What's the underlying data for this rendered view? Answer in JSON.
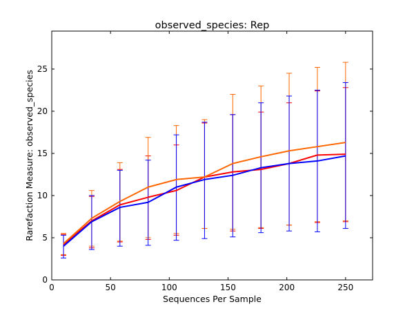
{
  "chart_data": {
    "type": "line",
    "title": "observed_species: Rep",
    "xlabel": "Sequences Per Sample",
    "ylabel": "Rarefaction Measure: observed_species",
    "xlim": [
      0,
      273
    ],
    "ylim": [
      0,
      29.5
    ],
    "xticks": [
      0,
      50,
      100,
      150,
      200,
      250
    ],
    "yticks": [
      0,
      5,
      10,
      15,
      20,
      25
    ],
    "grid": false,
    "legend": "none",
    "x": [
      10,
      34,
      58,
      82,
      106,
      130,
      154,
      178,
      202,
      226,
      250
    ],
    "series": [
      {
        "color": "#ff0000",
        "values": [
          4.2,
          7.0,
          8.9,
          9.8,
          10.6,
          12.2,
          12.8,
          13.1,
          13.8,
          14.8,
          14.9
        ],
        "err_low": [
          2.9,
          3.8,
          4.5,
          4.8,
          5.3,
          6.1,
          5.8,
          6.1,
          6.5,
          6.8,
          6.9
        ],
        "err_high": [
          5.4,
          9.9,
          13.1,
          14.7,
          16.0,
          18.6,
          19.6,
          19.9,
          21.0,
          22.4,
          22.8
        ]
      },
      {
        "color": "#ff6600",
        "values": [
          4.3,
          7.3,
          9.3,
          11.0,
          11.9,
          12.2,
          13.8,
          14.6,
          15.3,
          15.8,
          16.3
        ],
        "err_low": [
          3.0,
          4.0,
          4.6,
          5.0,
          5.5,
          6.1,
          6.0,
          6.2,
          6.5,
          6.9,
          7.0
        ],
        "err_high": [
          5.5,
          10.6,
          13.9,
          16.9,
          18.3,
          19.0,
          22.0,
          23.0,
          24.5,
          25.2,
          25.8
        ]
      },
      {
        "color": "#0000ff",
        "values": [
          4.0,
          6.9,
          8.6,
          9.2,
          11.0,
          11.9,
          12.4,
          13.3,
          13.8,
          14.1,
          14.7
        ],
        "err_low": [
          2.6,
          3.6,
          4.0,
          4.1,
          4.7,
          4.9,
          5.1,
          5.6,
          5.8,
          5.7,
          6.1
        ],
        "err_high": [
          5.3,
          10.0,
          13.0,
          14.2,
          17.2,
          18.7,
          19.6,
          21.0,
          21.8,
          22.5,
          23.4
        ]
      }
    ]
  }
}
